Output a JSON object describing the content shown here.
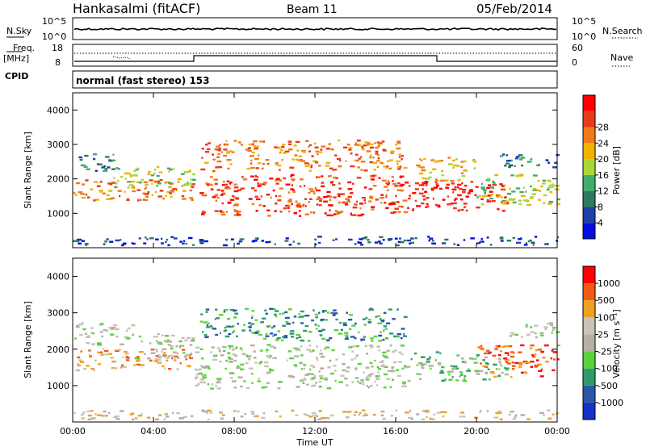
{
  "header": {
    "station": "Hankasalmi (fitACF)",
    "beam": "Beam 11",
    "date": "05/Feb/2014"
  },
  "sky_panel": {
    "left_label": "N.Sky",
    "right_label": "N.Search",
    "left_ticks": [
      "10^5",
      "10^0"
    ],
    "right_ticks": [
      "10^5",
      "10^0"
    ]
  },
  "freq_panel": {
    "label_top": "Freq.",
    "label_unit": "[MHz]",
    "left_ticks": [
      "18",
      "8"
    ],
    "right_ticks": [
      "60",
      "0"
    ],
    "right_label": "Nave",
    "cpid_label": "CPID"
  },
  "cpid_panel": {
    "text": "normal (fast stereo) 153"
  },
  "colors": {
    "power": [
      "#0010e0",
      "#1f3fa8",
      "#2f7a5a",
      "#3fae6a",
      "#a8d838",
      "#f0b400",
      "#f07a1a",
      "#e83a18",
      "#ff0000"
    ],
    "velocity": [
      "#ff0000",
      "#f05a14",
      "#f0a020",
      "#c8c4b8",
      "#b4b0a4",
      "#5ad23c",
      "#2f9a6a",
      "#2a58a8",
      "#1830c8"
    ]
  },
  "chart_data": [
    {
      "type": "heatmap",
      "name": "power",
      "ylabel": "Slant Range [km]",
      "ylim": [
        0,
        4500
      ],
      "yticks": [
        "1000",
        "2000",
        "3000",
        "4000"
      ],
      "xlim": [
        0,
        24
      ],
      "colorbar_label": "Power [dB]",
      "colorbar_ticks": [
        "4",
        "8",
        "12",
        "16",
        "20",
        "24",
        "28"
      ],
      "bands": [
        {
          "t0": 0,
          "t1": 6.0,
          "r0": 1350,
          "r1": 1950,
          "level": 6
        },
        {
          "t0": 0,
          "t1": 2.0,
          "r0": 2200,
          "r1": 2700,
          "level": 2
        },
        {
          "t0": 2,
          "t1": 6.0,
          "r0": 1700,
          "r1": 2350,
          "level": 4
        },
        {
          "t0": 6.2,
          "t1": 16.5,
          "r0": 900,
          "r1": 2100,
          "level": 7
        },
        {
          "t0": 6.3,
          "t1": 16.5,
          "r0": 2200,
          "r1": 3100,
          "level": 6
        },
        {
          "t0": 16.5,
          "t1": 21.5,
          "r0": 1050,
          "r1": 1900,
          "level": 8
        },
        {
          "t0": 17.0,
          "t1": 20.0,
          "r0": 1900,
          "r1": 2600,
          "level": 5
        },
        {
          "t0": 20.0,
          "t1": 24.0,
          "r0": 1200,
          "r1": 2100,
          "level": 4
        },
        {
          "t0": 21.0,
          "t1": 24.0,
          "r0": 2300,
          "r1": 2700,
          "level": 2
        },
        {
          "t0": 0,
          "t1": 24.0,
          "r0": 50,
          "r1": 300,
          "level": 1
        }
      ]
    },
    {
      "type": "heatmap",
      "name": "velocity",
      "ylabel": "Slant Range [km]",
      "ylim": [
        0,
        4500
      ],
      "yticks": [
        "1000",
        "2000",
        "3000",
        "4000"
      ],
      "xlim": [
        0,
        24
      ],
      "xlabel": "Time UT",
      "xticks": [
        "00:00",
        "04:00",
        "08:00",
        "12:00",
        "16:00",
        "20:00",
        "00:00"
      ],
      "colorbar_label": "Velocity [m s⁻¹]",
      "colorbar_ticks": [
        "1000",
        "500",
        "100",
        "25",
        "-25",
        "-100",
        "-500",
        "-1000"
      ],
      "bands": [
        {
          "t0": 0,
          "t1": 6.0,
          "r0": 1400,
          "r1": 2000,
          "level": 2
        },
        {
          "t0": 0,
          "t1": 3.0,
          "r0": 2100,
          "r1": 2700,
          "level": 4
        },
        {
          "t0": 3,
          "t1": 6.0,
          "r0": 1700,
          "r1": 2400,
          "level": 4
        },
        {
          "t0": 6.0,
          "t1": 16.5,
          "r0": 900,
          "r1": 2100,
          "level": 4
        },
        {
          "t0": 6.3,
          "t1": 16.5,
          "r0": 2200,
          "r1": 3100,
          "level": 6
        },
        {
          "t0": 16.5,
          "t1": 21.5,
          "r0": 1100,
          "r1": 1900,
          "level": 5
        },
        {
          "t0": 20.0,
          "t1": 24.0,
          "r0": 1200,
          "r1": 2100,
          "level": 1
        },
        {
          "t0": 21.0,
          "t1": 24.0,
          "r0": 2300,
          "r1": 2700,
          "level": 4
        },
        {
          "t0": 0,
          "t1": 24.0,
          "r0": 50,
          "r1": 300,
          "level": 3
        }
      ]
    }
  ]
}
